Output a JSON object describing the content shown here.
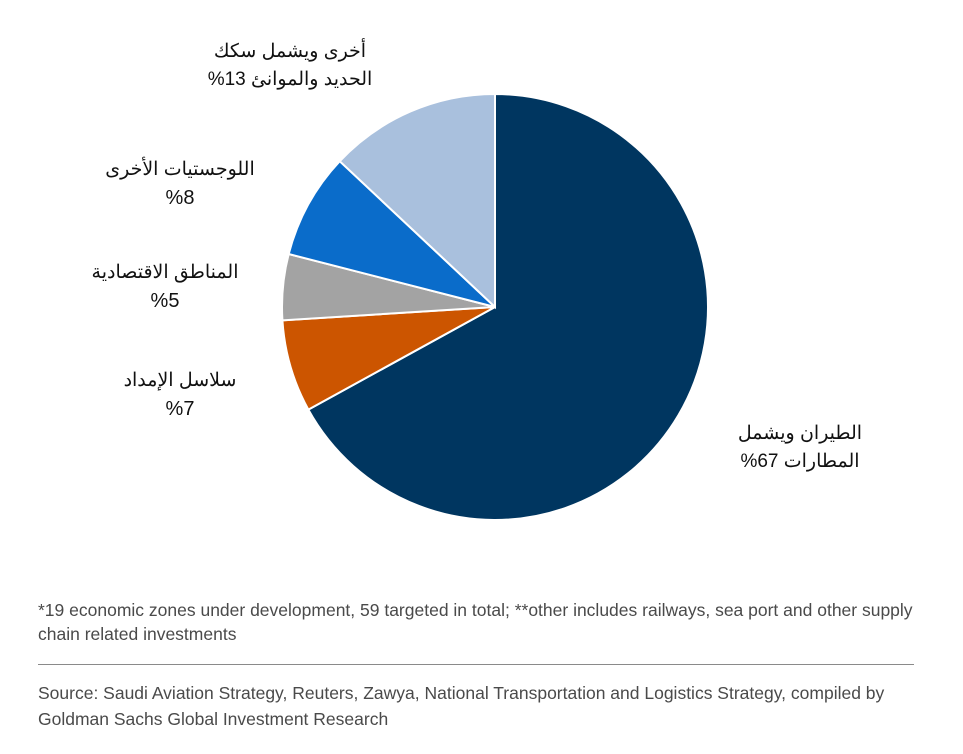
{
  "chart_data": {
    "type": "pie",
    "slices": [
      {
        "label": "الطيران ويشمل المطارات",
        "name_lines": [
          "الطيران ويشمل",
          "المطارات"
        ],
        "value": 67,
        "value_text": "%67",
        "color": "#003660"
      },
      {
        "label": "سلاسل الإمداد",
        "name_lines": [
          "سلاسل الإمداد"
        ],
        "value": 7,
        "value_text": "%7",
        "color": "#cc5500"
      },
      {
        "label": "المناطق الاقتصادية",
        "name_lines": [
          "المناطق الاقتصادية"
        ],
        "value": 5,
        "value_text": "%5",
        "color": "#a3a3a3"
      },
      {
        "label": "اللوجستيات الأخرى",
        "name_lines": [
          "اللوجستيات الأخرى"
        ],
        "value": 8,
        "value_text": "%8",
        "color": "#0a6cca"
      },
      {
        "label": "أخرى ويشمل سكك الحديد والموانئ",
        "name_lines": [
          "أخرى ويشمل سكك",
          "الحديد والموانئ"
        ],
        "value": 13,
        "value_text": "%13",
        "color": "#a9c0dd"
      }
    ],
    "direction": "clockwise",
    "start": "top",
    "legend": "none"
  },
  "notes": {
    "footnote": "*19 economic zones under development, 59 targeted in total; **other includes railways, sea port and other supply chain related investments",
    "source": "Source: Saudi Aviation Strategy, Reuters, Zawya, National Transportation and Logistics Strategy, compiled by Goldman Sachs Global Investment Research"
  }
}
